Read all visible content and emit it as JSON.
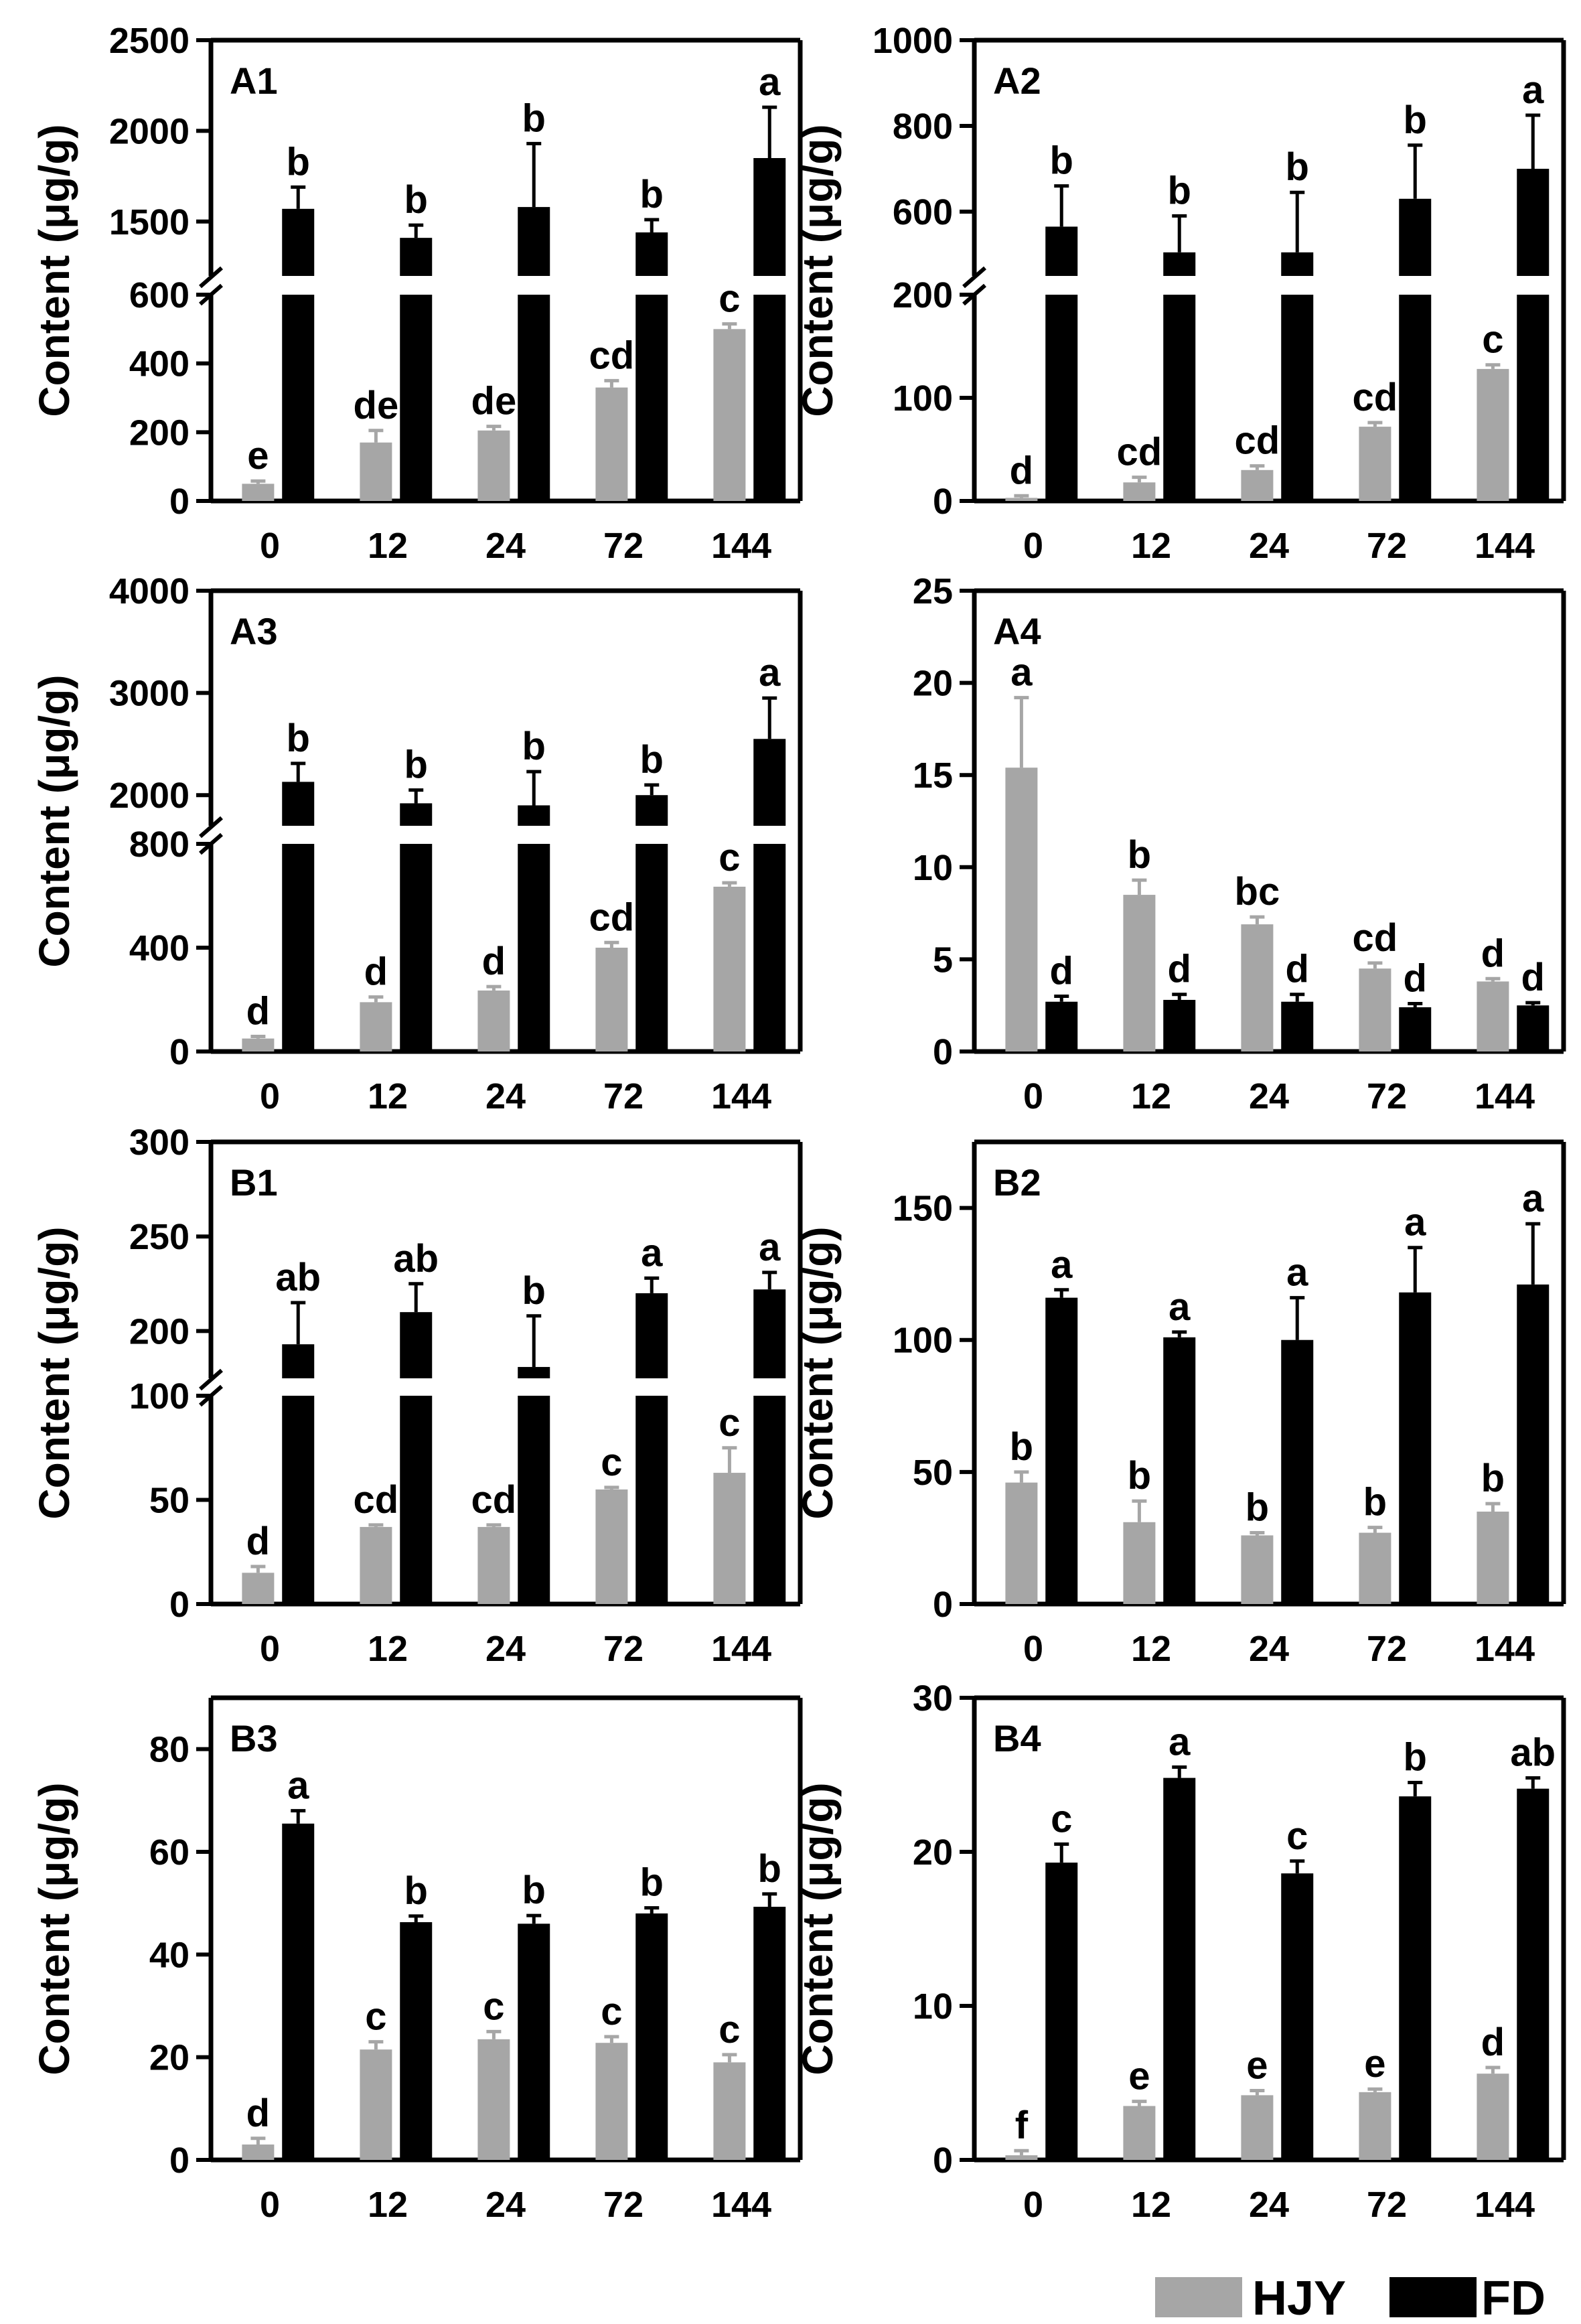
{
  "legend": {
    "series": [
      {
        "name": "HJY",
        "color": "#a6a6a6"
      },
      {
        "name": "FD",
        "color": "#000000"
      }
    ]
  },
  "chart_data": [
    {
      "type": "bar",
      "panel": "A1",
      "ylabel": "Content (μg/g)",
      "categories": [
        "0",
        "12",
        "24",
        "72",
        "144"
      ],
      "broken_axis": true,
      "lower": {
        "ylim": [
          0,
          600
        ],
        "ticks": [
          0,
          200,
          400,
          600
        ]
      },
      "upper": {
        "ylim": [
          1200,
          2500
        ],
        "ticks": [
          1500,
          2000,
          2500
        ]
      },
      "series": [
        {
          "name": "HJY",
          "values": [
            50,
            170,
            205,
            330,
            500
          ],
          "errors": [
            8,
            35,
            12,
            20,
            15
          ],
          "letters": [
            "e",
            "de",
            "de",
            "cd",
            "c"
          ]
        },
        {
          "name": "FD",
          "values": [
            1570,
            1410,
            1580,
            1440,
            1850
          ],
          "errors": [
            120,
            70,
            350,
            70,
            280
          ],
          "letters": [
            "b",
            "b",
            "b",
            "b",
            "a"
          ]
        }
      ]
    },
    {
      "type": "bar",
      "panel": "A2",
      "ylabel": "Content (μg/g)",
      "categories": [
        "0",
        "12",
        "24",
        "72",
        "144"
      ],
      "broken_axis": true,
      "lower": {
        "ylim": [
          0,
          200
        ],
        "ticks": [
          0,
          100,
          200
        ]
      },
      "upper": {
        "ylim": [
          450,
          1000
        ],
        "ticks": [
          600,
          800,
          1000
        ]
      },
      "series": [
        {
          "name": "HJY",
          "values": [
            3,
            18,
            30,
            72,
            128
          ],
          "errors": [
            2,
            5,
            4,
            4,
            4
          ],
          "letters": [
            "d",
            "cd",
            "cd",
            "cd",
            "c"
          ]
        },
        {
          "name": "FD",
          "values": [
            565,
            505,
            505,
            630,
            700
          ],
          "errors": [
            95,
            85,
            140,
            125,
            125
          ],
          "letters": [
            "b",
            "b",
            "b",
            "b",
            "a"
          ]
        }
      ]
    },
    {
      "type": "bar",
      "panel": "A3",
      "ylabel": "Content (μg/g)",
      "categories": [
        "0",
        "12",
        "24",
        "72",
        "144"
      ],
      "broken_axis": true,
      "lower": {
        "ylim": [
          0,
          800
        ],
        "ticks": [
          0,
          400,
          800
        ]
      },
      "upper": {
        "ylim": [
          1700,
          4000
        ],
        "ticks": [
          2000,
          3000,
          4000
        ]
      },
      "series": [
        {
          "name": "HJY",
          "values": [
            50,
            190,
            235,
            400,
            635
          ],
          "errors": [
            8,
            20,
            15,
            20,
            15
          ],
          "letters": [
            "d",
            "d",
            "d",
            "cd",
            "c"
          ]
        },
        {
          "name": "FD",
          "values": [
            2130,
            1920,
            1900,
            2000,
            2550
          ],
          "errors": [
            180,
            130,
            330,
            100,
            400
          ],
          "letters": [
            "b",
            "b",
            "b",
            "b",
            "a"
          ]
        }
      ]
    },
    {
      "type": "bar",
      "panel": "A4",
      "ylabel": "",
      "categories": [
        "0",
        "12",
        "24",
        "72",
        "144"
      ],
      "broken_axis": false,
      "ylim": [
        0,
        25
      ],
      "ticks": [
        0,
        5,
        10,
        15,
        20,
        25
      ],
      "series": [
        {
          "name": "HJY",
          "values": [
            15.4,
            8.5,
            6.9,
            4.5,
            3.8
          ],
          "errors": [
            3.8,
            0.8,
            0.4,
            0.3,
            0.15
          ],
          "letters": [
            "a",
            "b",
            "bc",
            "cd",
            "d"
          ]
        },
        {
          "name": "FD",
          "values": [
            2.7,
            2.8,
            2.7,
            2.4,
            2.5
          ],
          "errors": [
            0.3,
            0.3,
            0.4,
            0.2,
            0.15
          ],
          "letters": [
            "d",
            "d",
            "d",
            "d",
            "d"
          ]
        }
      ]
    },
    {
      "type": "bar",
      "panel": "B1",
      "ylabel": "Content (μg/g)",
      "categories": [
        "0",
        "12",
        "24",
        "72",
        "144"
      ],
      "broken_axis": true,
      "lower": {
        "ylim": [
          0,
          100
        ],
        "ticks": [
          0,
          50,
          100
        ]
      },
      "upper": {
        "ylim": [
          175,
          300
        ],
        "ticks": [
          200,
          250,
          300
        ]
      },
      "series": [
        {
          "name": "HJY",
          "values": [
            15,
            37,
            37,
            55,
            63
          ],
          "errors": [
            3,
            1,
            1,
            1,
            12
          ],
          "letters": [
            "d",
            "cd",
            "cd",
            "c",
            "c"
          ]
        },
        {
          "name": "FD",
          "values": [
            193,
            210,
            181,
            220,
            222
          ],
          "errors": [
            22,
            15,
            27,
            8,
            9
          ],
          "letters": [
            "ab",
            "ab",
            "b",
            "a",
            "a"
          ]
        }
      ]
    },
    {
      "type": "bar",
      "panel": "B2",
      "ylabel": "Content (μg/g)",
      "categories": [
        "0",
        "12",
        "24",
        "72",
        "144"
      ],
      "broken_axis": false,
      "ylim": [
        0,
        175
      ],
      "ticks": [
        0,
        50,
        100,
        150
      ],
      "series": [
        {
          "name": "HJY",
          "values": [
            46,
            31,
            26,
            27,
            35
          ],
          "errors": [
            4,
            8,
            1,
            2,
            3
          ],
          "letters": [
            "b",
            "b",
            "b",
            "b",
            "b"
          ]
        },
        {
          "name": "FD",
          "values": [
            116,
            101,
            100,
            118,
            121
          ],
          "errors": [
            3,
            2,
            16,
            17,
            23
          ],
          "letters": [
            "a",
            "a",
            "a",
            "a",
            "a"
          ]
        }
      ]
    },
    {
      "type": "bar",
      "panel": "B3",
      "ylabel": "Content (μg/g)",
      "categories": [
        "0",
        "12",
        "24",
        "72",
        "144"
      ],
      "broken_axis": false,
      "ylim": [
        0,
        90
      ],
      "ticks": [
        0,
        20,
        40,
        60,
        80
      ],
      "series": [
        {
          "name": "HJY",
          "values": [
            3,
            21.5,
            23.5,
            22.8,
            19
          ],
          "errors": [
            1.2,
            1.5,
            1.5,
            1.2,
            1.5
          ],
          "letters": [
            "d",
            "c",
            "c",
            "c",
            "c"
          ]
        },
        {
          "name": "FD",
          "values": [
            65.5,
            46.3,
            46,
            48,
            49.3
          ],
          "errors": [
            2.5,
            1.2,
            1.6,
            1.1,
            2.5
          ],
          "letters": [
            "a",
            "b",
            "b",
            "b",
            "b"
          ]
        }
      ]
    },
    {
      "type": "bar",
      "panel": "B4",
      "ylabel": "Content (μg/g)",
      "categories": [
        "0",
        "12",
        "24",
        "72",
        "144"
      ],
      "broken_axis": false,
      "ylim": [
        0,
        30
      ],
      "ticks": [
        0,
        10,
        20,
        30
      ],
      "series": [
        {
          "name": "HJY",
          "values": [
            0.3,
            3.5,
            4.2,
            4.4,
            5.6
          ],
          "errors": [
            0.3,
            0.3,
            0.3,
            0.2,
            0.4
          ],
          "letters": [
            "f",
            "e",
            "e",
            "e",
            "d"
          ]
        },
        {
          "name": "FD",
          "values": [
            19.3,
            24.8,
            18.6,
            23.6,
            24.1
          ],
          "errors": [
            1.2,
            0.7,
            0.8,
            0.9,
            0.7
          ],
          "letters": [
            "c",
            "a",
            "c",
            "b",
            "ab"
          ]
        }
      ]
    }
  ]
}
